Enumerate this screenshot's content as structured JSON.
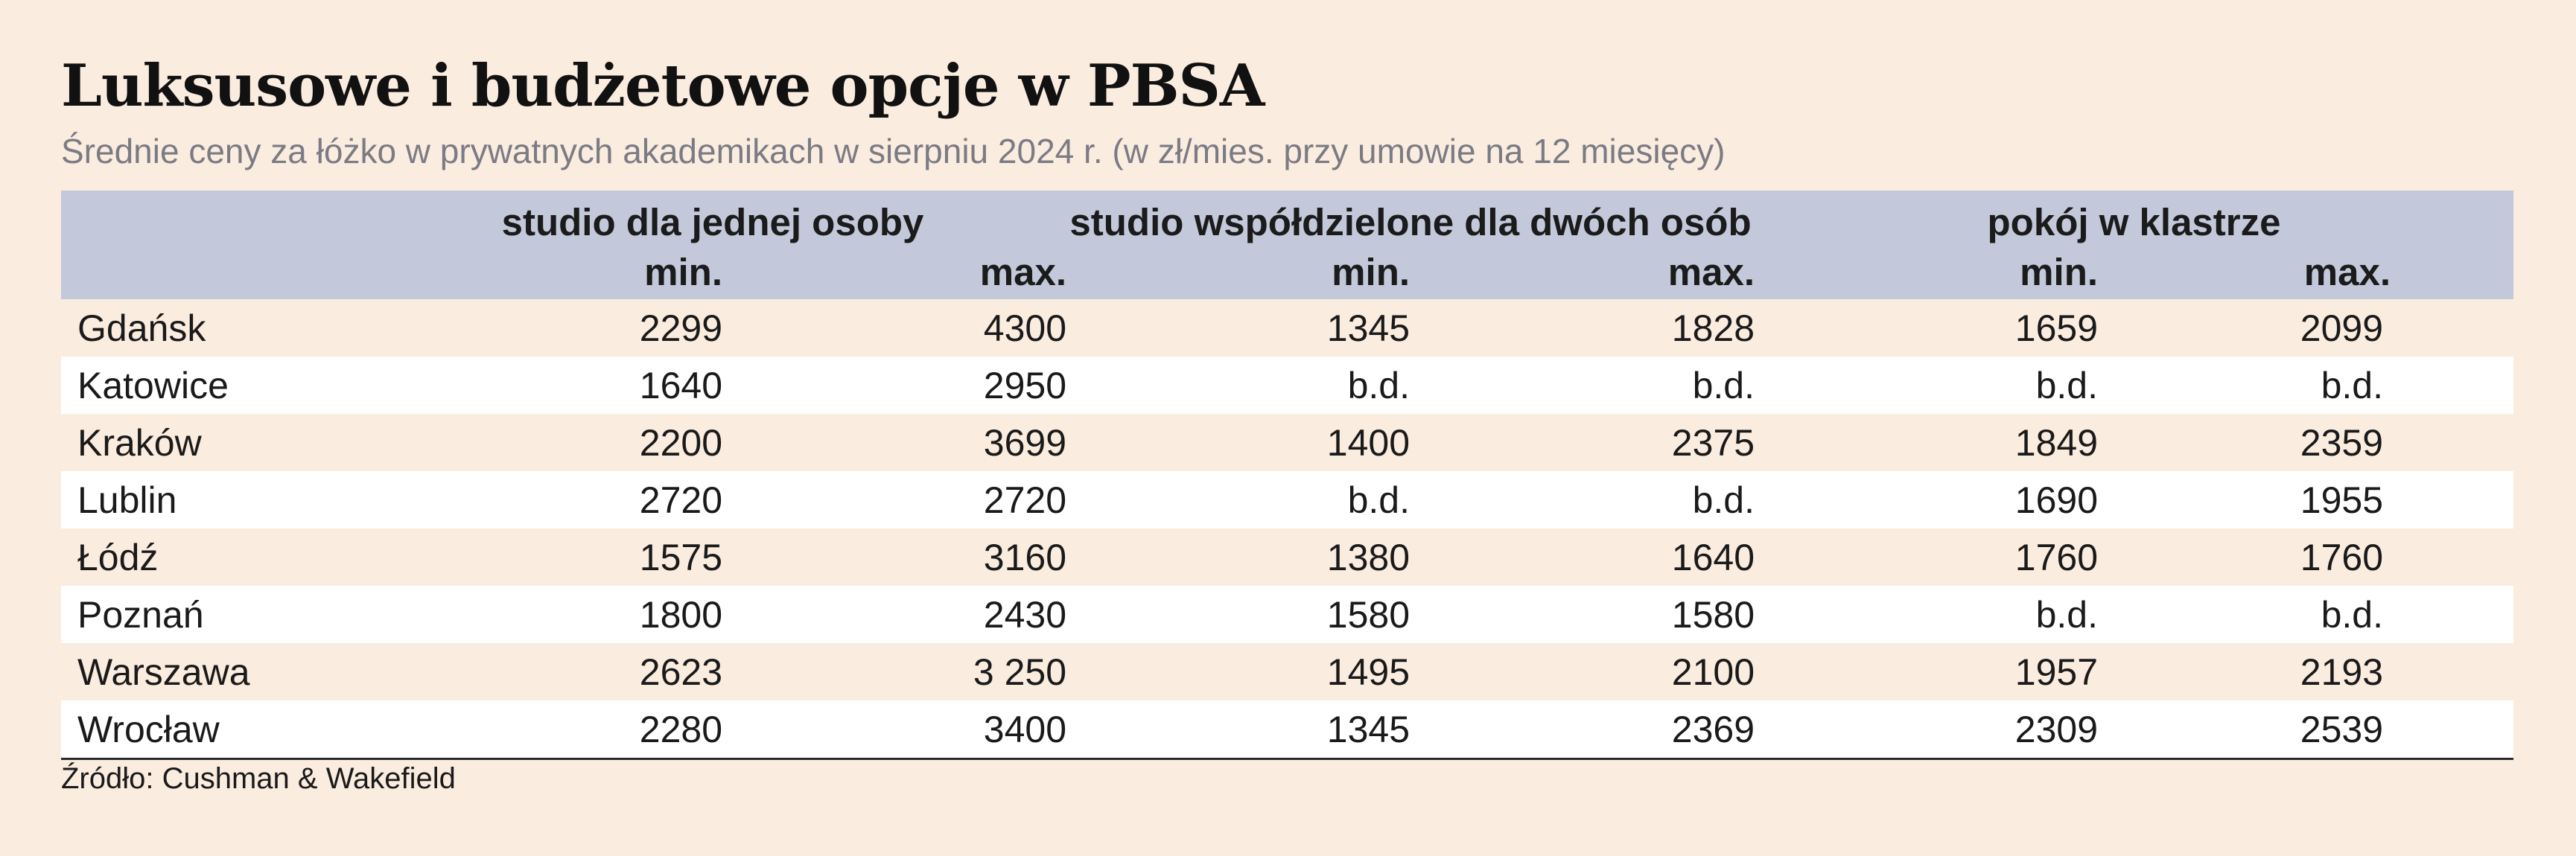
{
  "chart_data": {
    "type": "table",
    "title": "Luksusowe i budżetowe opcje w PBSA",
    "subtitle": "Średnie ceny za łóżko w prywatnych akademikach w sierpniu 2024 r. (w zł/mies. przy umowie na 12 miesięcy)",
    "groups": [
      "studio dla jednej osoby",
      "studio współdzielone dla dwóch osób",
      "pokój w klastrze"
    ],
    "subheaders": [
      "min.",
      "max.",
      "min.",
      "max.",
      "min.",
      "max."
    ],
    "rows": [
      {
        "city": "Gdańsk",
        "values": [
          "2299",
          "4300",
          "1345",
          "1828",
          "1659",
          "2099"
        ]
      },
      {
        "city": "Katowice",
        "values": [
          "1640",
          "2950",
          "b.d.",
          "b.d.",
          "b.d.",
          "b.d."
        ]
      },
      {
        "city": "Kraków",
        "values": [
          "2200",
          "3699",
          "1400",
          "2375",
          "1849",
          "2359"
        ]
      },
      {
        "city": "Lublin",
        "values": [
          "2720",
          "2720",
          "b.d.",
          "b.d.",
          "1690",
          "1955"
        ]
      },
      {
        "city": "Łódź",
        "values": [
          "1575",
          "3160",
          "1380",
          "1640",
          "1760",
          "1760"
        ]
      },
      {
        "city": "Poznań",
        "values": [
          "1800",
          "2430",
          "1580",
          "1580",
          "b.d.",
          "b.d."
        ]
      },
      {
        "city": "Warszawa",
        "values": [
          "2623",
          "3 250",
          "1495",
          "2100",
          "1957",
          "2193"
        ]
      },
      {
        "city": "Wrocław",
        "values": [
          "2280",
          "3400",
          "1345",
          "2369",
          "2309",
          "2539"
        ]
      }
    ],
    "source": "Źródło: Cushman & Wakefield"
  },
  "colors": {
    "background": "#fbece0",
    "header": "#c3c8da",
    "row_alt": "#ffffff",
    "subtitle": "#7b7b84"
  }
}
